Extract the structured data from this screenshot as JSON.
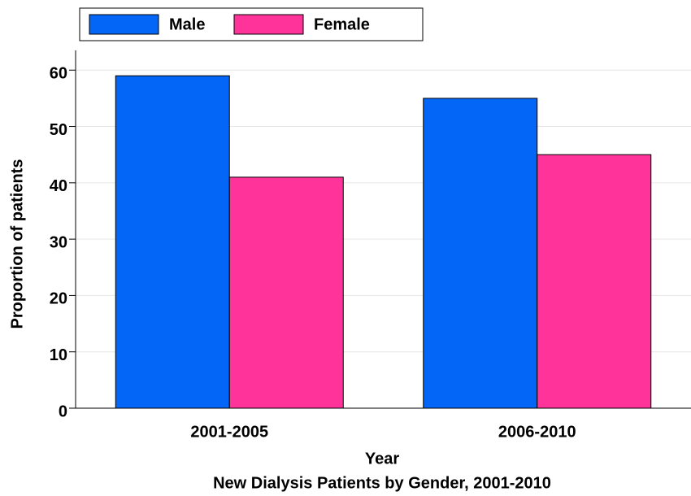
{
  "chart_data": {
    "type": "bar",
    "title": "New Dialysis Patients by Gender, 2001-2010",
    "x_label": "Year",
    "y_label": "Proportion of patients",
    "categories": [
      "2001-2005",
      "2006-2010"
    ],
    "series": [
      {
        "name": "Male",
        "color": "#0466f6",
        "values": [
          59,
          55
        ]
      },
      {
        "name": "Female",
        "color": "#ff3399",
        "values": [
          41,
          45
        ]
      }
    ],
    "ylim": [
      0,
      63.5
    ],
    "yticks": [
      0,
      10,
      20,
      30,
      40,
      50,
      60
    ],
    "grid": true,
    "legend": "top"
  }
}
